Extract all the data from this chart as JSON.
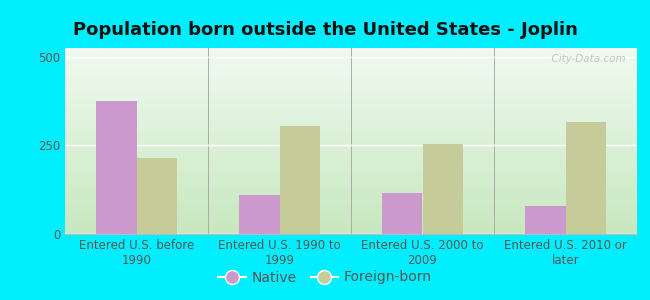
{
  "title": "Population born outside the United States - Joplin",
  "categories": [
    "Entered U.S. before\n1990",
    "Entered U.S. 1990 to\n1999",
    "Entered U.S. 2000 to\n2009",
    "Entered U.S. 2010 or\nlater"
  ],
  "native_values": [
    375,
    110,
    115,
    80
  ],
  "foreign_values": [
    215,
    305,
    255,
    315
  ],
  "native_color": "#cc99cc",
  "foreign_color": "#c5cc99",
  "background_outer": "#00eeff",
  "background_inner": "#e8f5e0",
  "ylim": [
    0,
    525
  ],
  "yticks": [
    0,
    250,
    500
  ],
  "bar_width": 0.28,
  "title_fontsize": 13,
  "tick_fontsize": 8.5,
  "legend_fontsize": 10,
  "watermark": "  City-Data.com"
}
